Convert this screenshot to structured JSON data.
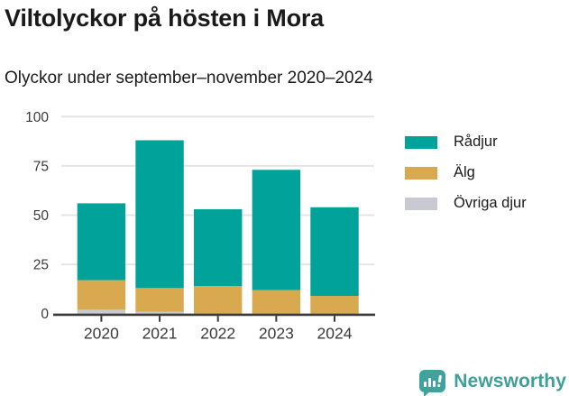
{
  "header": {
    "title": "Viltolyckor på hösten i Mora",
    "subtitle": "Olyckor under september–november 2020–2024"
  },
  "chart_data": {
    "type": "bar",
    "stacked": true,
    "title": "Viltolyckor på hösten i Mora",
    "subtitle": "Olyckor under september–november 2020–2024",
    "categories": [
      "2020",
      "2021",
      "2022",
      "2023",
      "2024"
    ],
    "series": [
      {
        "name": "Rådjur",
        "color": "#00a29a",
        "values": [
          39,
          75,
          39,
          61,
          45
        ]
      },
      {
        "name": "Älg",
        "color": "#d9a94f",
        "values": [
          15,
          12,
          14,
          12,
          9
        ]
      },
      {
        "name": "Övriga djur",
        "color": "#c9c9d3",
        "values": [
          2,
          1,
          0,
          0,
          0
        ]
      }
    ],
    "stack_totals": [
      56,
      88,
      53,
      73,
      54
    ],
    "xlabel": "",
    "ylabel": "",
    "ylim": [
      0,
      100
    ],
    "yticks": [
      0,
      25,
      50,
      75,
      100
    ],
    "grid": true,
    "gridline_color": "#e4e4e4",
    "axis_color": "#3a3a3a",
    "legend_position": "right"
  },
  "footer": {
    "brand": "Newsworthy",
    "brand_color": "#3f9f99",
    "logo_icon": "bar-chart-speech-bubble-icon"
  }
}
